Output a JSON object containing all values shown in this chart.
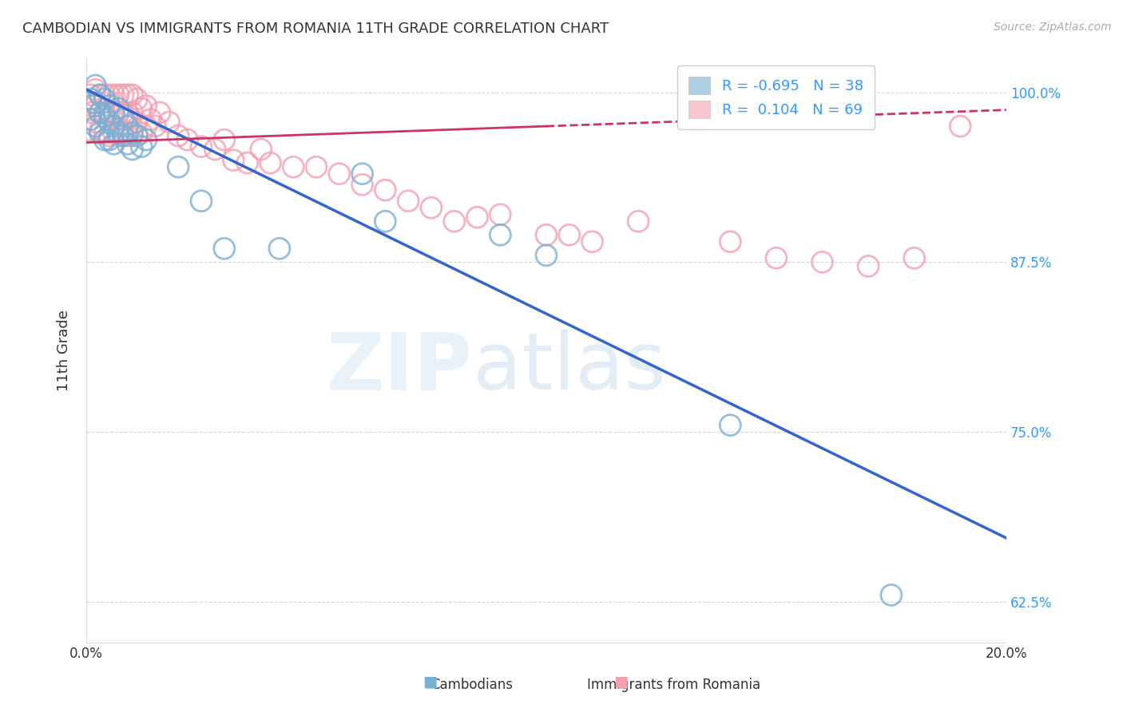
{
  "title": "CAMBODIAN VS IMMIGRANTS FROM ROMANIA 11TH GRADE CORRELATION CHART",
  "source": "Source: ZipAtlas.com",
  "xlabel_cambodians": "Cambodians",
  "xlabel_romania": "Immigrants from Romania",
  "ylabel": "11th Grade",
  "watermark_zip": "ZIP",
  "watermark_atlas": "atlas",
  "xlim": [
    0.0,
    0.2
  ],
  "ylim": [
    0.595,
    1.025
  ],
  "yticks": [
    0.625,
    0.75,
    0.875,
    1.0
  ],
  "ytick_labels": [
    "62.5%",
    "75.0%",
    "87.5%",
    "100.0%"
  ],
  "blue_color": "#7BAFD4",
  "pink_color": "#F4A0B0",
  "blue_line_color": "#3366CC",
  "pink_line_color": "#CC3366",
  "r_blue": -0.695,
  "n_blue": 38,
  "r_pink": 0.104,
  "n_pink": 69,
  "blue_scatter_x": [
    0.001,
    0.001,
    0.002,
    0.002,
    0.002,
    0.003,
    0.003,
    0.003,
    0.004,
    0.004,
    0.004,
    0.005,
    0.005,
    0.005,
    0.006,
    0.006,
    0.006,
    0.007,
    0.007,
    0.008,
    0.008,
    0.009,
    0.009,
    0.01,
    0.01,
    0.011,
    0.012,
    0.013,
    0.02,
    0.025,
    0.03,
    0.042,
    0.06,
    0.065,
    0.09,
    0.1,
    0.14,
    0.175
  ],
  "blue_scatter_y": [
    0.995,
    0.98,
    1.005,
    0.992,
    0.975,
    0.998,
    0.985,
    0.97,
    0.995,
    0.982,
    0.965,
    0.99,
    0.978,
    0.965,
    0.985,
    0.975,
    0.962,
    0.988,
    0.97,
    0.98,
    0.968,
    0.975,
    0.962,
    0.97,
    0.958,
    0.968,
    0.96,
    0.965,
    0.945,
    0.92,
    0.885,
    0.885,
    0.94,
    0.905,
    0.895,
    0.88,
    0.755,
    0.63
  ],
  "pink_scatter_x": [
    0.001,
    0.001,
    0.001,
    0.002,
    0.002,
    0.002,
    0.003,
    0.003,
    0.003,
    0.004,
    0.004,
    0.004,
    0.005,
    0.005,
    0.005,
    0.006,
    0.006,
    0.006,
    0.007,
    0.007,
    0.007,
    0.008,
    0.008,
    0.008,
    0.009,
    0.009,
    0.009,
    0.01,
    0.01,
    0.01,
    0.011,
    0.011,
    0.012,
    0.012,
    0.013,
    0.013,
    0.014,
    0.015,
    0.016,
    0.018,
    0.02,
    0.022,
    0.025,
    0.028,
    0.03,
    0.032,
    0.035,
    0.038,
    0.04,
    0.045,
    0.05,
    0.055,
    0.06,
    0.065,
    0.07,
    0.075,
    0.08,
    0.085,
    0.09,
    0.1,
    0.105,
    0.11,
    0.12,
    0.14,
    0.15,
    0.16,
    0.17,
    0.18,
    0.19
  ],
  "pink_scatter_y": [
    0.998,
    0.985,
    0.972,
    1.002,
    0.99,
    0.978,
    0.998,
    0.985,
    0.972,
    0.998,
    0.985,
    0.97,
    0.998,
    0.985,
    0.968,
    0.998,
    0.985,
    0.97,
    0.998,
    0.985,
    0.968,
    0.998,
    0.985,
    0.97,
    0.998,
    0.985,
    0.968,
    0.998,
    0.985,
    0.968,
    0.995,
    0.978,
    0.988,
    0.97,
    0.99,
    0.975,
    0.98,
    0.975,
    0.985,
    0.978,
    0.968,
    0.965,
    0.96,
    0.958,
    0.965,
    0.95,
    0.948,
    0.958,
    0.948,
    0.945,
    0.945,
    0.94,
    0.932,
    0.928,
    0.92,
    0.915,
    0.905,
    0.908,
    0.91,
    0.895,
    0.895,
    0.89,
    0.905,
    0.89,
    0.878,
    0.875,
    0.872,
    0.878,
    0.975
  ],
  "blue_line_x0": 0.0,
  "blue_line_y0": 1.002,
  "blue_line_x1": 0.2,
  "blue_line_y1": 0.672,
  "pink_line_solid_x0": 0.0,
  "pink_line_solid_y0": 0.963,
  "pink_line_solid_x1": 0.1,
  "pink_line_solid_y1": 0.975,
  "pink_line_dash_x0": 0.1,
  "pink_line_dash_y0": 0.975,
  "pink_line_dash_x1": 0.2,
  "pink_line_dash_y1": 0.987,
  "background_color": "#FFFFFF",
  "grid_color": "#CCCCCC",
  "title_color": "#333333",
  "right_tick_color": "#3399FF",
  "legend_r_color": "#3399FF"
}
